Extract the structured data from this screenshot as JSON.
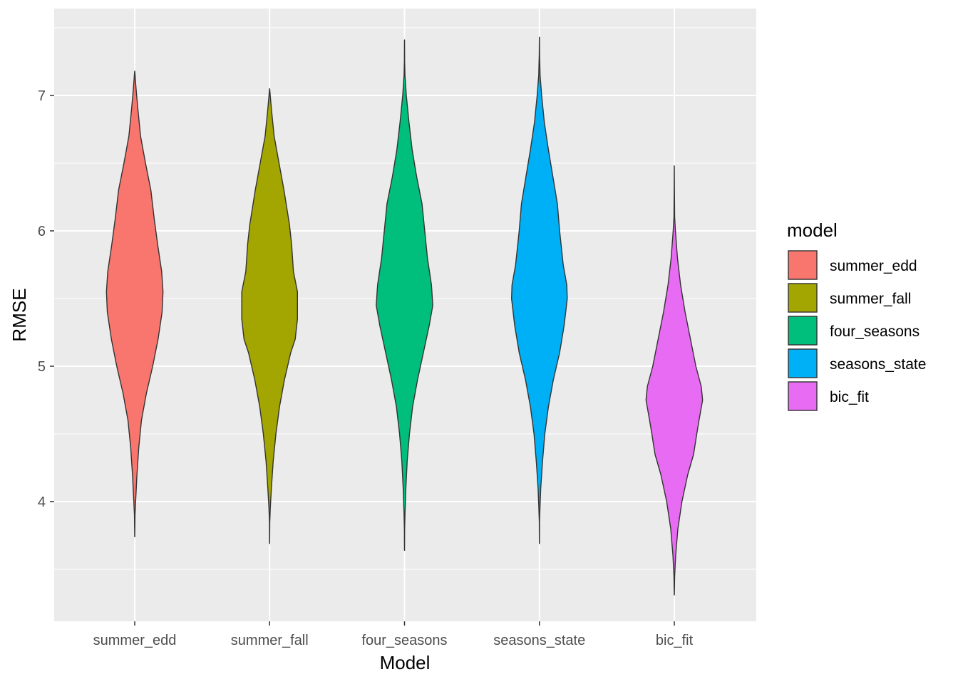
{
  "chart_data": {
    "type": "violin",
    "xlabel": "Model",
    "ylabel": "RMSE",
    "categories": [
      "summer_edd",
      "summer_fall",
      "four_seasons",
      "seasons_state",
      "bic_fit"
    ],
    "ylim": [
      3.15,
      7.65
    ],
    "y_ticks": [
      4,
      5,
      6,
      7
    ],
    "grid": true,
    "legend": {
      "title": "model",
      "position": "right",
      "entries": [
        "summer_edd",
        "summer_fall",
        "four_seasons",
        "seasons_state",
        "bic_fit"
      ]
    },
    "colors": [
      "#F8766D",
      "#A3A500",
      "#00BF7D",
      "#00B0F6",
      "#E76BF3"
    ],
    "panel_background": "#EBEBEB",
    "series": [
      {
        "category": "summer_edd",
        "min": 3.74,
        "max": 7.18,
        "profile": [
          [
            3.74,
            0.001
          ],
          [
            3.9,
            0.006
          ],
          [
            4.0,
            0.02
          ],
          [
            4.2,
            0.05
          ],
          [
            4.4,
            0.09
          ],
          [
            4.6,
            0.15
          ],
          [
            4.8,
            0.26
          ],
          [
            5.0,
            0.4
          ],
          [
            5.2,
            0.52
          ],
          [
            5.4,
            0.61
          ],
          [
            5.55,
            0.63
          ],
          [
            5.7,
            0.6
          ],
          [
            5.9,
            0.51
          ],
          [
            6.1,
            0.43
          ],
          [
            6.3,
            0.36
          ],
          [
            6.5,
            0.24
          ],
          [
            6.7,
            0.13
          ],
          [
            6.9,
            0.07
          ],
          [
            7.05,
            0.03
          ],
          [
            7.18,
            0.001
          ]
        ]
      },
      {
        "category": "summer_fall",
        "min": 3.69,
        "max": 7.05,
        "profile": [
          [
            3.69,
            0.001
          ],
          [
            3.85,
            0.004
          ],
          [
            3.95,
            0.015
          ],
          [
            4.1,
            0.04
          ],
          [
            4.3,
            0.08
          ],
          [
            4.5,
            0.14
          ],
          [
            4.7,
            0.22
          ],
          [
            4.9,
            0.33
          ],
          [
            5.1,
            0.47
          ],
          [
            5.2,
            0.57
          ],
          [
            5.35,
            0.62
          ],
          [
            5.55,
            0.62
          ],
          [
            5.7,
            0.53
          ],
          [
            5.9,
            0.49
          ],
          [
            6.05,
            0.44
          ],
          [
            6.3,
            0.32
          ],
          [
            6.5,
            0.21
          ],
          [
            6.7,
            0.1
          ],
          [
            6.9,
            0.04
          ],
          [
            7.05,
            0.001
          ]
        ]
      },
      {
        "category": "four_seasons",
        "min": 3.64,
        "max": 7.41,
        "profile": [
          [
            3.64,
            0.001
          ],
          [
            3.8,
            0.003
          ],
          [
            3.9,
            0.01
          ],
          [
            4.1,
            0.03
          ],
          [
            4.3,
            0.06
          ],
          [
            4.5,
            0.11
          ],
          [
            4.7,
            0.18
          ],
          [
            4.9,
            0.29
          ],
          [
            5.1,
            0.42
          ],
          [
            5.3,
            0.55
          ],
          [
            5.45,
            0.63
          ],
          [
            5.6,
            0.6
          ],
          [
            5.8,
            0.51
          ],
          [
            6.0,
            0.45
          ],
          [
            6.2,
            0.39
          ],
          [
            6.4,
            0.27
          ],
          [
            6.6,
            0.17
          ],
          [
            6.8,
            0.1
          ],
          [
            7.0,
            0.04
          ],
          [
            7.15,
            0.01
          ],
          [
            7.25,
            0.003
          ],
          [
            7.41,
            0.001
          ]
        ]
      },
      {
        "category": "seasons_state",
        "min": 3.69,
        "max": 7.43,
        "profile": [
          [
            3.69,
            0.001
          ],
          [
            3.85,
            0.003
          ],
          [
            3.95,
            0.012
          ],
          [
            4.1,
            0.03
          ],
          [
            4.3,
            0.07
          ],
          [
            4.5,
            0.12
          ],
          [
            4.7,
            0.2
          ],
          [
            4.9,
            0.31
          ],
          [
            5.1,
            0.45
          ],
          [
            5.3,
            0.55
          ],
          [
            5.5,
            0.62
          ],
          [
            5.6,
            0.61
          ],
          [
            5.75,
            0.53
          ],
          [
            6.0,
            0.45
          ],
          [
            6.2,
            0.4
          ],
          [
            6.4,
            0.3
          ],
          [
            6.6,
            0.2
          ],
          [
            6.8,
            0.11
          ],
          [
            7.0,
            0.05
          ],
          [
            7.15,
            0.015
          ],
          [
            7.3,
            0.004
          ],
          [
            7.43,
            0.001
          ]
        ]
      },
      {
        "category": "bic_fit",
        "min": 3.31,
        "max": 6.48,
        "profile": [
          [
            3.31,
            0.001
          ],
          [
            3.45,
            0.008
          ],
          [
            3.6,
            0.03
          ],
          [
            3.8,
            0.08
          ],
          [
            4.0,
            0.17
          ],
          [
            4.2,
            0.3
          ],
          [
            4.35,
            0.43
          ],
          [
            4.5,
            0.5
          ],
          [
            4.6,
            0.55
          ],
          [
            4.75,
            0.63
          ],
          [
            4.85,
            0.6
          ],
          [
            5.0,
            0.48
          ],
          [
            5.2,
            0.36
          ],
          [
            5.4,
            0.24
          ],
          [
            5.6,
            0.14
          ],
          [
            5.8,
            0.07
          ],
          [
            6.0,
            0.025
          ],
          [
            6.1,
            0.008
          ],
          [
            6.3,
            0.003
          ],
          [
            6.48,
            0.001
          ]
        ]
      }
    ]
  }
}
